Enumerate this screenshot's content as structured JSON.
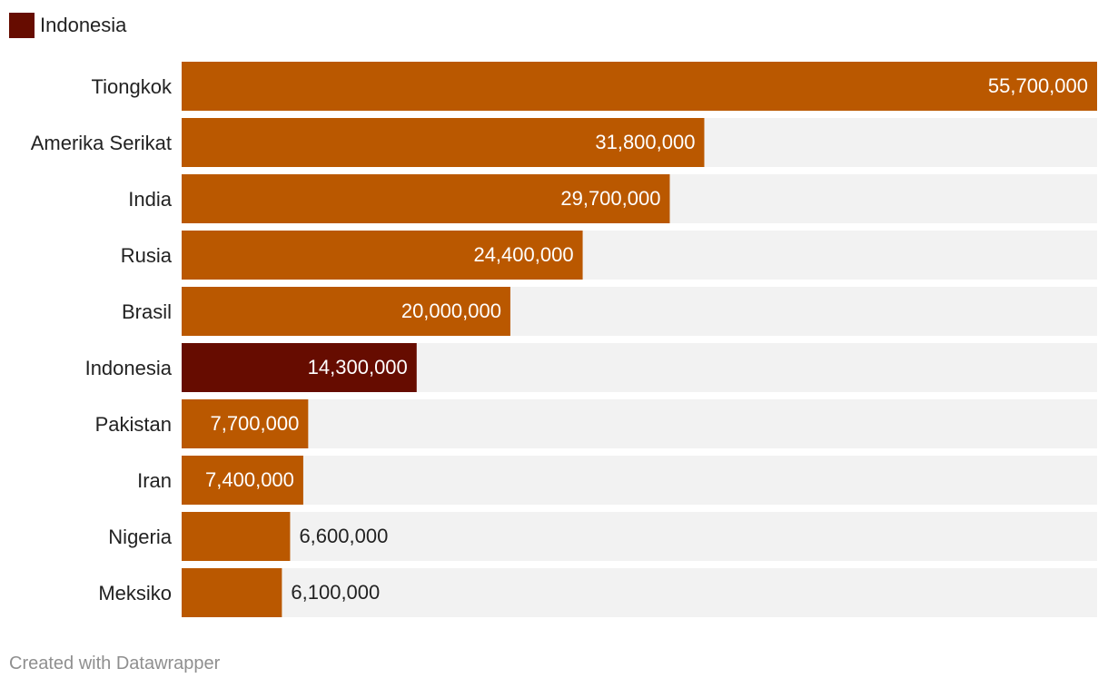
{
  "legend": {
    "label": "Indonesia",
    "color": "#660c00"
  },
  "colors": {
    "bar": "#ba5800",
    "highlight": "#660c00",
    "track": "#f2f2f2",
    "label_inside": "#ffffff",
    "label_outside": "#222222"
  },
  "chart_data": {
    "type": "bar",
    "orientation": "horizontal",
    "title": "",
    "xlabel": "",
    "ylabel": "",
    "xlim": [
      0,
      55700000
    ],
    "categories": [
      "Tiongkok",
      "Amerika Serikat",
      "India",
      "Rusia",
      "Brasil",
      "Indonesia",
      "Pakistan",
      "Iran",
      "Nigeria",
      "Meksiko"
    ],
    "values": [
      55700000,
      31800000,
      29700000,
      24400000,
      20000000,
      14300000,
      7700000,
      7400000,
      6600000,
      6100000
    ],
    "value_labels": [
      "55,700,000",
      "31,800,000",
      "29,700,000",
      "24,400,000",
      "20,000,000",
      "14,300,000",
      "7,700,000",
      "7,400,000",
      "6,600,000",
      "6,100,000"
    ],
    "highlighted": [
      "Indonesia"
    ]
  },
  "footer": {
    "credit": "Created with Datawrapper"
  }
}
